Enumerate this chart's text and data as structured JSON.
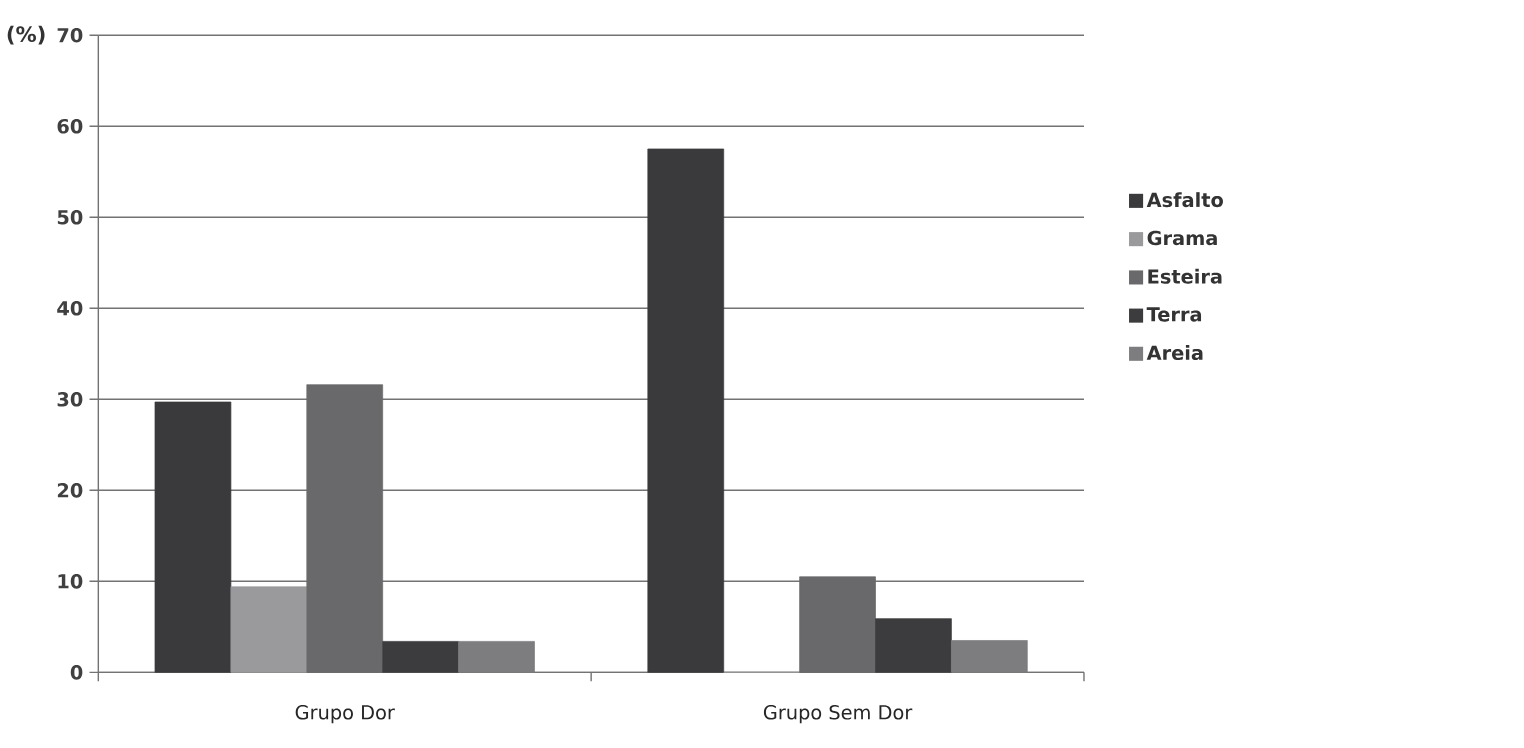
{
  "chart_data": {
    "type": "bar",
    "ylabel": "(%)",
    "categories": [
      "Grupo Dor",
      "Grupo Sem Dor"
    ],
    "series": [
      {
        "name": "Asfalto",
        "color": "#3a3a3c",
        "values": [
          29.7,
          57.5
        ]
      },
      {
        "name": "Grama",
        "color": "#9a9a9c",
        "values": [
          9.4,
          0
        ]
      },
      {
        "name": "Esteira",
        "color": "#69696b",
        "values": [
          31.6,
          10.5
        ]
      },
      {
        "name": "Terra",
        "color": "#3c3c3e",
        "values": [
          3.4,
          5.9
        ]
      },
      {
        "name": "Areia",
        "color": "#7d7d7f",
        "values": [
          3.4,
          3.5
        ]
      }
    ],
    "ylim": [
      0,
      70
    ],
    "yticks": [
      0,
      10,
      20,
      30,
      40,
      50,
      60,
      70
    ],
    "grid": "y",
    "legend": "right"
  }
}
